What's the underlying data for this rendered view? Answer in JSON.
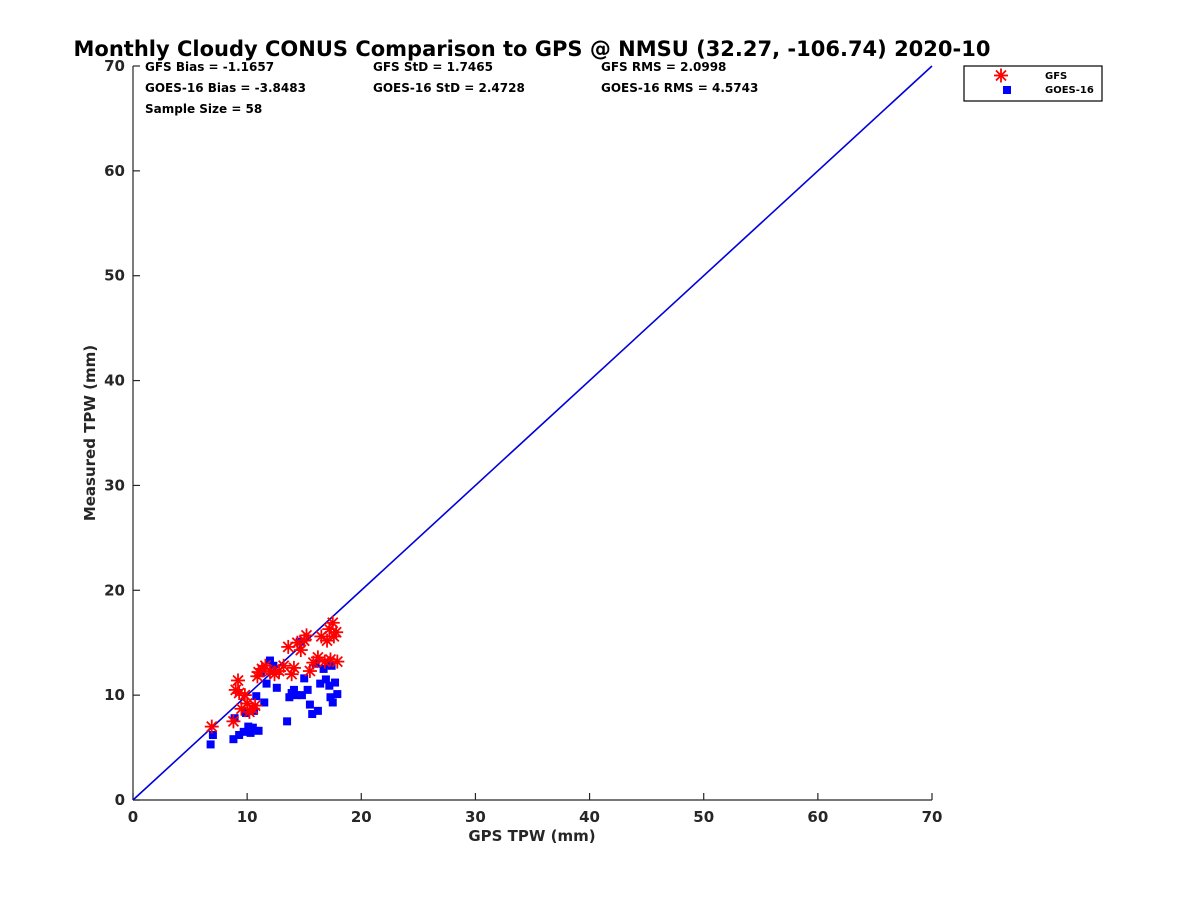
{
  "chart_data": {
    "type": "scatter",
    "title": "Monthly Cloudy CONUS Comparison to GPS @ NMSU (32.27, -106.74) 2020-10",
    "xlabel": "GPS TPW (mm)",
    "ylabel": "Measured TPW (mm)",
    "xlim": [
      0,
      70
    ],
    "ylim": [
      0,
      70
    ],
    "xticks": [
      "0",
      "10",
      "20",
      "30",
      "40",
      "50",
      "60",
      "70"
    ],
    "yticks": [
      "0",
      "10",
      "20",
      "30",
      "40",
      "50",
      "60",
      "70"
    ],
    "grid": false,
    "legend_position": "outside top-right",
    "stats": {
      "gfs_bias": "GFS Bias = -1.1657",
      "gfs_std": "GFS StD = 1.7465",
      "gfs_rms": "GFS RMS = 2.0998",
      "goes_bias": "GOES-16 Bias = -3.8483",
      "goes_std": "GOES-16 StD = 2.4728",
      "goes_rms": "GOES-16 RMS = 4.5743",
      "sample_size": "Sample Size = 58"
    },
    "reference_line": {
      "x": [
        0,
        70
      ],
      "y": [
        0,
        70
      ],
      "color": "#0000dd"
    },
    "series": [
      {
        "name": "GFS",
        "marker": "asterisk",
        "color": "#ff0000",
        "x": [
          6.9,
          8.8,
          9.0,
          9.2,
          9.3,
          9.5,
          9.8,
          10.0,
          10.2,
          10.5,
          10.7,
          10.9,
          11.0,
          11.3,
          11.6,
          12.0,
          12.4,
          12.8,
          13.2,
          13.6,
          13.9,
          14.1,
          14.4,
          14.7,
          15.0,
          15.2,
          15.5,
          15.8,
          16.2,
          16.5,
          16.8,
          17.0,
          17.2,
          17.3,
          17.5,
          17.6,
          17.8,
          17.9
        ],
        "y": [
          7.0,
          7.5,
          10.5,
          11.4,
          10.2,
          8.7,
          10.0,
          9.2,
          8.4,
          8.7,
          9.0,
          11.8,
          12.2,
          12.5,
          12.8,
          12.3,
          12.0,
          12.3,
          12.8,
          14.6,
          12.0,
          12.6,
          15.0,
          14.3,
          15.2,
          15.7,
          12.3,
          13.1,
          13.6,
          15.6,
          13.2,
          15.2,
          16.3,
          13.4,
          16.9,
          15.6,
          16.0,
          13.2
        ]
      },
      {
        "name": "GOES-16",
        "marker": "square",
        "color": "#0000ff",
        "x": [
          6.8,
          7.0,
          8.8,
          8.9,
          9.3,
          9.7,
          9.9,
          10.1,
          10.3,
          10.5,
          10.6,
          10.8,
          11.0,
          11.2,
          11.5,
          11.7,
          12.0,
          12.3,
          12.6,
          13.5,
          13.7,
          13.9,
          14.1,
          14.3,
          14.6,
          14.8,
          15.0,
          15.3,
          15.5,
          15.7,
          16.0,
          16.2,
          16.4,
          16.7,
          16.9,
          17.1,
          17.2,
          17.3,
          17.4,
          17.5,
          17.7,
          17.9
        ],
        "y": [
          5.3,
          6.2,
          5.8,
          7.8,
          6.2,
          6.5,
          8.3,
          7.0,
          6.4,
          6.9,
          8.5,
          9.9,
          6.6,
          12.1,
          9.3,
          11.1,
          13.3,
          12.8,
          10.7,
          7.5,
          9.8,
          10.2,
          10.5,
          10.0,
          15.1,
          10.0,
          11.6,
          10.5,
          9.1,
          8.2,
          13.0,
          8.5,
          11.1,
          12.5,
          11.5,
          13.0,
          10.9,
          9.8,
          12.8,
          9.3,
          11.2,
          10.1
        ]
      }
    ]
  }
}
